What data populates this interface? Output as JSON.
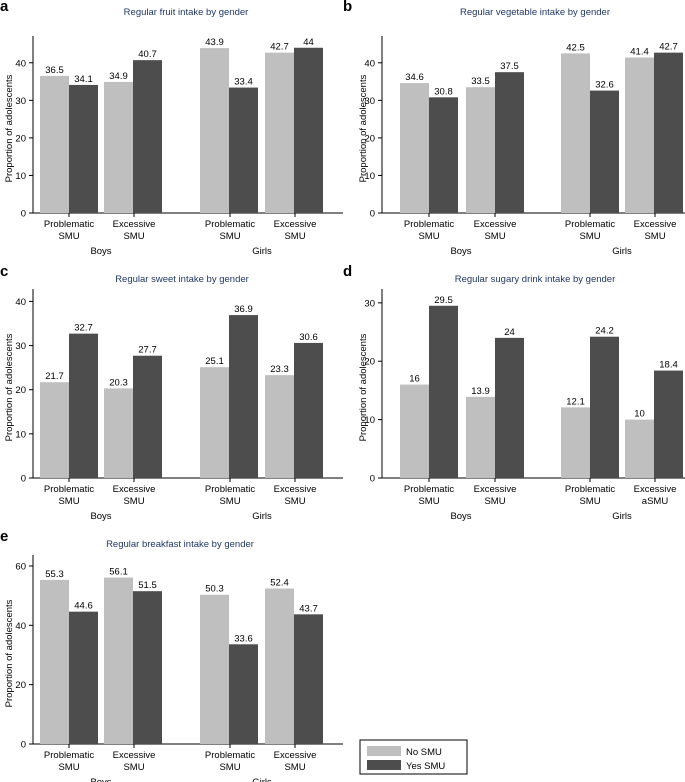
{
  "chart_data": [
    {
      "panel": "a",
      "type": "bar",
      "title": "Regular fruit intake by gender",
      "ylabel": "Proportion of adolescents",
      "ylim": [
        0,
        45
      ],
      "yticks": [
        0,
        10,
        20,
        30,
        40
      ],
      "groups": [
        {
          "name": "Boys",
          "categories": [
            {
              "label": [
                "Problematic",
                "SMU"
              ],
              "values": [
                36.5,
                34.1
              ],
              "value_labels": [
                "36.5",
                "34.1"
              ]
            },
            {
              "label": [
                "Excessive",
                "SMU"
              ],
              "values": [
                34.9,
                40.7
              ],
              "value_labels": [
                "34.9",
                "40.7"
              ]
            }
          ]
        },
        {
          "name": "Girls",
          "categories": [
            {
              "label": [
                "Problematic",
                "SMU"
              ],
              "values": [
                43.9,
                33.4
              ],
              "value_labels": [
                "43.9",
                "33.4"
              ]
            },
            {
              "label": [
                "Excessive",
                "SMU"
              ],
              "values": [
                42.7,
                44.0
              ],
              "value_labels": [
                "42.7",
                "44"
              ]
            }
          ]
        }
      ]
    },
    {
      "panel": "b",
      "type": "bar",
      "title": "Regular vegetable intake by gender",
      "ylabel": "Proportion of adolescents",
      "ylim": [
        0,
        45
      ],
      "yticks": [
        0,
        10,
        20,
        30,
        40
      ],
      "groups": [
        {
          "name": "Boys",
          "categories": [
            {
              "label": [
                "Problematic",
                "SMU"
              ],
              "values": [
                34.6,
                30.8
              ],
              "value_labels": [
                "34.6",
                "30.8"
              ]
            },
            {
              "label": [
                "Excessive",
                "SMU"
              ],
              "values": [
                33.5,
                37.5
              ],
              "value_labels": [
                "33.5",
                "37.5"
              ]
            }
          ]
        },
        {
          "name": "Girls",
          "categories": [
            {
              "label": [
                "Problematic",
                "SMU"
              ],
              "values": [
                42.5,
                32.6
              ],
              "value_labels": [
                "42.5",
                "32.6"
              ]
            },
            {
              "label": [
                "Excessive",
                "SMU"
              ],
              "values": [
                41.4,
                42.7
              ],
              "value_labels": [
                "41.4",
                "42.7"
              ]
            }
          ]
        }
      ]
    },
    {
      "panel": "c",
      "type": "bar",
      "title": "Regular sweet intake by gender",
      "ylabel": "Proportion of adolescents",
      "ylim": [
        0,
        41
      ],
      "yticks": [
        0,
        10,
        20,
        30,
        40
      ],
      "groups": [
        {
          "name": "Boys",
          "categories": [
            {
              "label": [
                "Problematic",
                "SMU"
              ],
              "values": [
                21.7,
                32.7
              ],
              "value_labels": [
                "21.7",
                "32.7"
              ]
            },
            {
              "label": [
                "Excessive",
                "SMU"
              ],
              "values": [
                20.3,
                27.7
              ],
              "value_labels": [
                "20.3",
                "27.7"
              ]
            }
          ]
        },
        {
          "name": "Girls",
          "categories": [
            {
              "label": [
                "Problematic",
                "SMU"
              ],
              "values": [
                25.1,
                36.9
              ],
              "value_labels": [
                "25.1",
                "36.9"
              ]
            },
            {
              "label": [
                "Excessive",
                "SMU"
              ],
              "values": [
                23.3,
                30.6
              ],
              "value_labels": [
                "23.3",
                "30.6"
              ]
            }
          ]
        }
      ]
    },
    {
      "panel": "d",
      "type": "bar",
      "title": "Regular sugary drink intake by gender",
      "ylabel": "Proportion of adolescents",
      "ylim": [
        0,
        31
      ],
      "yticks": [
        0,
        10,
        20,
        30
      ],
      "groups": [
        {
          "name": "Boys",
          "categories": [
            {
              "label": [
                "Problematic",
                "SMU"
              ],
              "values": [
                16.0,
                29.5
              ],
              "value_labels": [
                "16",
                "29.5"
              ]
            },
            {
              "label": [
                "Excessive",
                "SMU"
              ],
              "values": [
                13.9,
                24.0
              ],
              "value_labels": [
                "13.9",
                "24"
              ]
            }
          ]
        },
        {
          "name": "Girls",
          "categories": [
            {
              "label": [
                "Problematic",
                "SMU"
              ],
              "values": [
                12.1,
                24.2
              ],
              "value_labels": [
                "12.1",
                "24.2"
              ]
            },
            {
              "label": [
                "Excessive",
                "aSMU"
              ],
              "values": [
                10.0,
                18.4
              ],
              "value_labels": [
                "10",
                "18.4"
              ]
            }
          ]
        }
      ]
    },
    {
      "panel": "e",
      "type": "bar",
      "title": "Regular breakfast intake by gender",
      "ylabel": "Proportion of adolescents",
      "ylim": [
        0,
        61
      ],
      "yticks": [
        0,
        20,
        40,
        60
      ],
      "groups": [
        {
          "name": "Boys",
          "categories": [
            {
              "label": [
                "Problematic",
                "SMU"
              ],
              "values": [
                55.3,
                44.6
              ],
              "value_labels": [
                "55.3",
                "44.6"
              ]
            },
            {
              "label": [
                "Excessive",
                "SMU"
              ],
              "values": [
                56.1,
                51.5
              ],
              "value_labels": [
                "56.1",
                "51.5"
              ]
            }
          ]
        },
        {
          "name": "Girls",
          "categories": [
            {
              "label": [
                "Problematic",
                "SMU"
              ],
              "values": [
                50.3,
                33.6
              ],
              "value_labels": [
                "50.3",
                "33.6"
              ]
            },
            {
              "label": [
                "Excessive",
                "SMU"
              ],
              "values": [
                52.4,
                43.7
              ],
              "value_labels": [
                "52.4",
                "43.7"
              ]
            }
          ]
        }
      ]
    }
  ],
  "legend": {
    "entries": [
      {
        "name": "No SMU",
        "color": "#bfbfbf"
      },
      {
        "name": "Yes SMU",
        "color": "#4d4d4d"
      }
    ],
    "position": "bottom-right"
  },
  "colors": {
    "no_smu": "#bfbfbf",
    "yes_smu": "#4d4d4d",
    "title": "#1f3864",
    "axis": "#000000"
  }
}
